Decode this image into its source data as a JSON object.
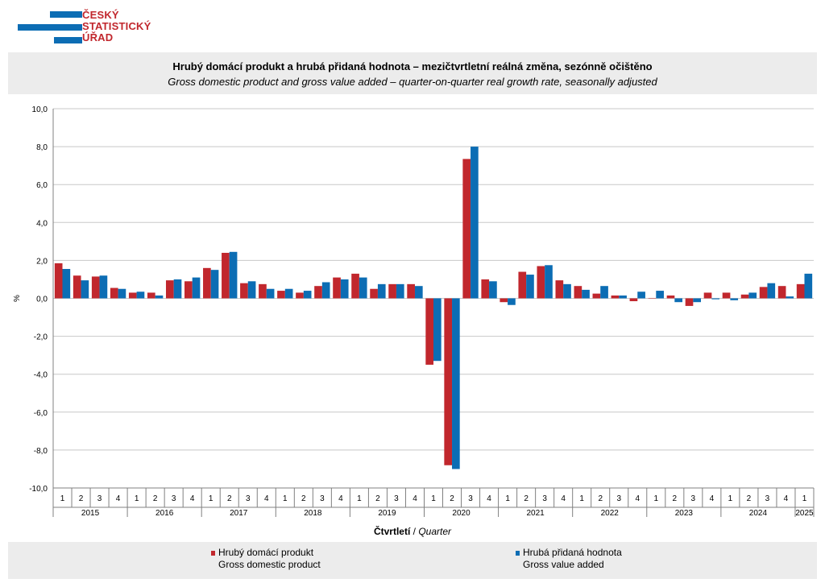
{
  "logo": {
    "lines": [
      "ČESKÝ",
      "STATISTICKÝ",
      "ÚŘAD"
    ],
    "colors": {
      "bars": "#0c6db4",
      "text": "#c1272d"
    }
  },
  "header": {
    "title_cz": "Hrubý domácí produkt a hrubá přidaná hodnota – mezičtvrtletní reálná změna, sezónně očištěno",
    "title_en": "Gross domestic product and gross value added – quarter-on-quarter real growth rate, seasonally adjusted"
  },
  "xaxis": {
    "label_cz": "Čtvrtletí",
    "separator": " / ",
    "label_en": "Quarter"
  },
  "legend": {
    "items": [
      {
        "line1": "Hrubý domácí produkt",
        "line2": "Gross domestic product",
        "color": "#c1272d"
      },
      {
        "line1": "Hrubá přidaná hodnota",
        "line2": "Gross value added",
        "color": "#0c6db4"
      }
    ]
  },
  "chart_data": {
    "type": "bar",
    "ylabel": "%",
    "ylim": [
      -10,
      10
    ],
    "yticks": [
      "10,0",
      "8,0",
      "6,0",
      "4,0",
      "2,0",
      "0,0",
      "-2,0",
      "-4,0",
      "-6,0",
      "-8,0",
      "-10,0"
    ],
    "grid": true,
    "legend_position": "bottom",
    "categories": [
      "2015 Q1",
      "2015 Q2",
      "2015 Q3",
      "2015 Q4",
      "2016 Q1",
      "2016 Q2",
      "2016 Q3",
      "2016 Q4",
      "2017 Q1",
      "2017 Q2",
      "2017 Q3",
      "2017 Q4",
      "2018 Q1",
      "2018 Q2",
      "2018 Q3",
      "2018 Q4",
      "2019 Q1",
      "2019 Q2",
      "2019 Q3",
      "2019 Q4",
      "2020 Q1",
      "2020 Q2",
      "2020 Q3",
      "2020 Q4",
      "2021 Q1",
      "2021 Q2",
      "2021 Q3",
      "2021 Q4",
      "2022 Q1",
      "2022 Q2",
      "2022 Q3",
      "2022 Q4",
      "2023 Q1",
      "2023 Q2",
      "2023 Q3",
      "2023 Q4",
      "2024 Q1",
      "2024 Q2",
      "2024 Q3",
      "2024 Q4",
      "2025 Q1"
    ],
    "quarter_labels": [
      "1",
      "2",
      "3",
      "4",
      "1",
      "2",
      "3",
      "4",
      "1",
      "2",
      "3",
      "4",
      "1",
      "2",
      "3",
      "4",
      "1",
      "2",
      "3",
      "4",
      "1",
      "2",
      "3",
      "4",
      "1",
      "2",
      "3",
      "4",
      "1",
      "2",
      "3",
      "4",
      "1",
      "2",
      "3",
      "4",
      "1",
      "2",
      "3",
      "4",
      "1"
    ],
    "years": [
      "2015",
      "2016",
      "2017",
      "2018",
      "2019",
      "2020",
      "2021",
      "2022",
      "2023",
      "2024",
      "2025"
    ],
    "series": [
      {
        "name": "Hrubý domácí produkt",
        "color": "#c1272d",
        "values": [
          1.85,
          1.2,
          1.15,
          0.55,
          0.3,
          0.3,
          0.95,
          0.9,
          1.6,
          2.4,
          0.8,
          0.75,
          0.4,
          0.3,
          0.65,
          1.1,
          1.3,
          0.5,
          0.75,
          0.75,
          -3.5,
          -8.8,
          7.35,
          1.0,
          -0.2,
          1.4,
          1.7,
          0.95,
          0.65,
          0.25,
          0.15,
          -0.15,
          0.0,
          0.15,
          -0.4,
          0.3,
          0.3,
          0.2,
          0.6,
          0.65,
          0.75
        ]
      },
      {
        "name": "Hrubá přidaná hodnota",
        "color": "#0c6db4",
        "values": [
          1.55,
          0.95,
          1.2,
          0.5,
          0.35,
          0.15,
          1.0,
          1.1,
          1.5,
          2.45,
          0.9,
          0.5,
          0.5,
          0.4,
          0.85,
          1.0,
          1.1,
          0.75,
          0.75,
          0.65,
          -3.3,
          -9.0,
          8.0,
          0.9,
          -0.35,
          1.25,
          1.75,
          0.75,
          0.45,
          0.65,
          0.15,
          0.35,
          0.4,
          -0.2,
          -0.2,
          -0.05,
          -0.1,
          0.3,
          0.8,
          0.1,
          1.3
        ]
      }
    ]
  }
}
